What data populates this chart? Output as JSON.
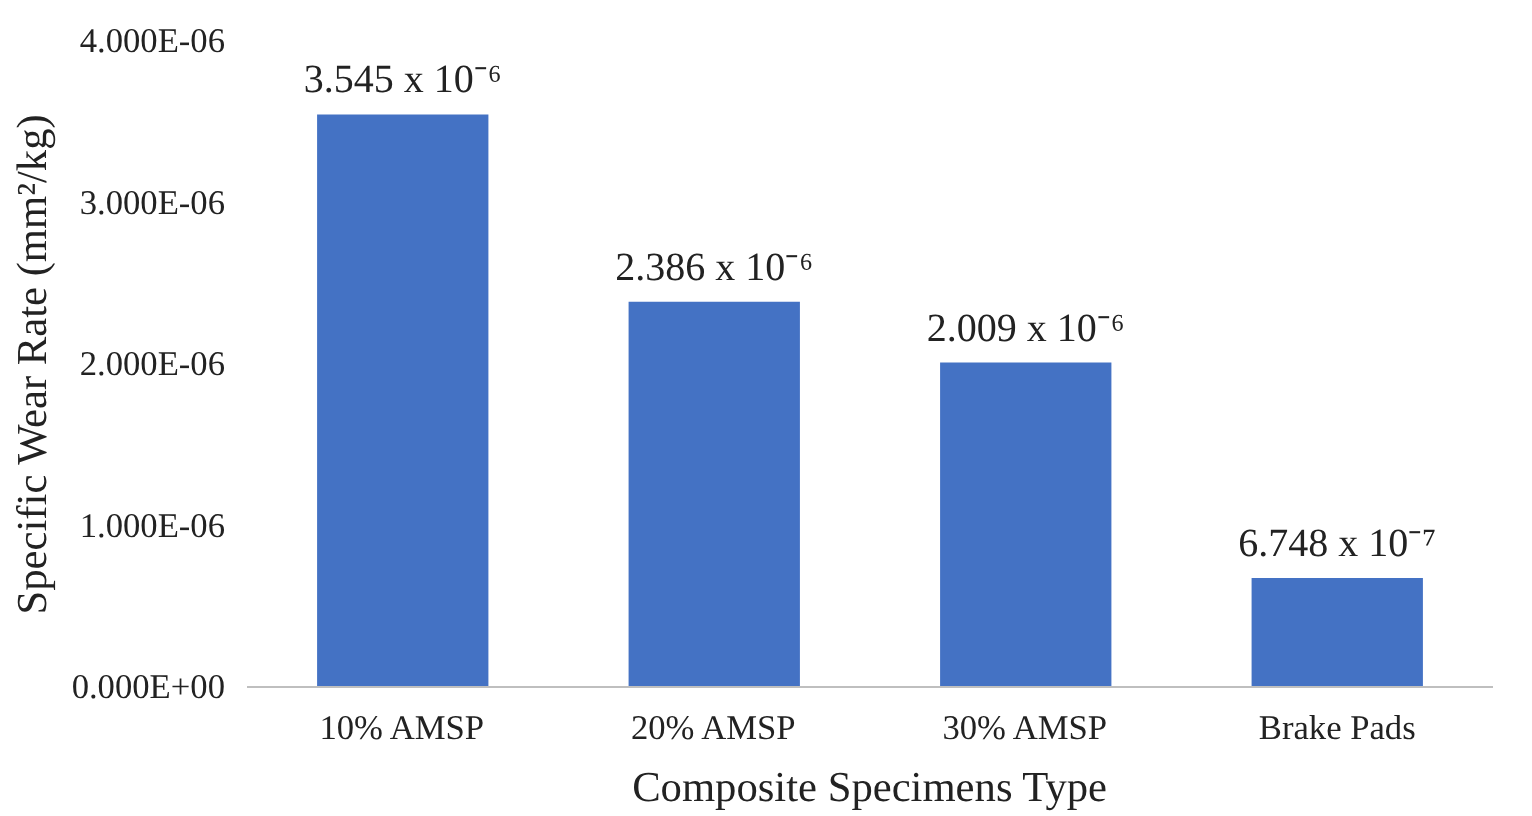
{
  "chart_data": {
    "type": "bar",
    "xlabel": "Composite Specimens Type",
    "ylabel": "Specific Wear Rate (mm²/kg)",
    "categories": [
      "10% AMSP",
      "20% AMSP",
      "30% AMSP",
      "Brake Pads"
    ],
    "values": [
      3.545e-06,
      2.386e-06,
      2.009e-06,
      6.748e-07
    ],
    "value_labels": [
      "3.545 x 10⁻⁶",
      "2.386 x 10⁻⁶",
      "2.009 x 10⁻⁶",
      "6.748 x 10⁻⁷"
    ],
    "color": "#4472c4",
    "ylim": [
      0,
      4e-06
    ],
    "yticks": [
      {
        "value": 0,
        "label": "0.000E+00"
      },
      {
        "value": 1e-06,
        "label": "1.000E-06"
      },
      {
        "value": 2e-06,
        "label": "2.000E-06"
      },
      {
        "value": 3e-06,
        "label": "3.000E-06"
      },
      {
        "value": 4e-06,
        "label": "4.000E-06"
      }
    ],
    "grid": false
  }
}
